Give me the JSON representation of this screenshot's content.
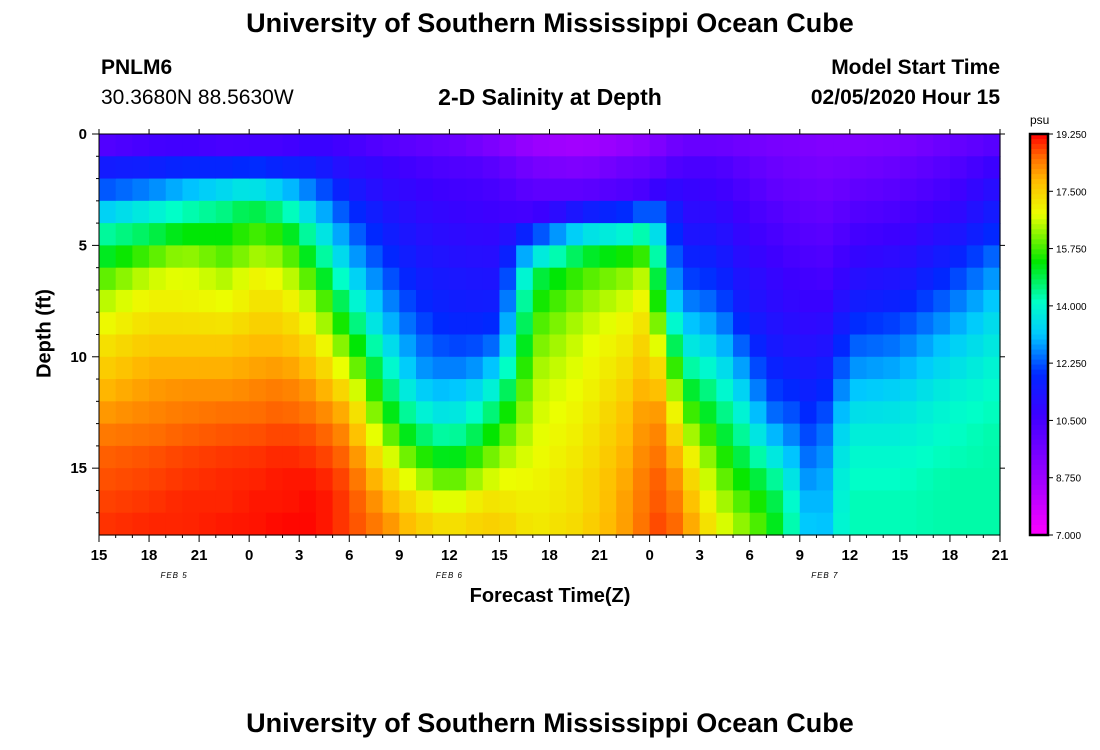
{
  "header": {
    "title_top": "University of Southern Mississippi Ocean Cube",
    "title_bottom": "University of Southern Mississippi Ocean Cube",
    "station_id": "PNLM6",
    "station_coords": "30.3680N 88.5630W",
    "plot_title": "2-D Salinity at Depth",
    "model_start_label": "Model Start Time",
    "model_start_value": "02/05/2020 Hour 15"
  },
  "chart_data": {
    "type": "heatmap",
    "title": "2-D Salinity at Depth",
    "xlabel": "Forecast Time(Z)",
    "ylabel": "Depth (ft)",
    "x_tick_labels": [
      "15",
      "18",
      "21",
      "0",
      "3",
      "6",
      "9",
      "12",
      "15",
      "18",
      "21",
      "0",
      "3",
      "6",
      "9",
      "12",
      "15",
      "18",
      "21"
    ],
    "x_hours_range": [
      0,
      54
    ],
    "x_step_hours": 1,
    "day_labels": [
      {
        "text": "FEB 5",
        "hour": 4.5
      },
      {
        "text": "FEB 6",
        "hour": 21
      },
      {
        "text": "FEB 7",
        "hour": 43.5
      }
    ],
    "y_ticks": [
      0,
      5,
      10,
      15
    ],
    "y_tick_labels": [
      "0",
      "5",
      "10",
      "15"
    ],
    "ylim": [
      0,
      18
    ],
    "depth_levels": [
      0.5,
      1.5,
      2.5,
      3.5,
      4.5,
      5.5,
      6.5,
      7.5,
      8.5,
      9.5,
      10.5,
      11.5,
      12.5,
      13.5,
      14.5,
      15.5,
      16.5,
      17.5
    ],
    "colorbar": {
      "unit": "psu",
      "min": 7.0,
      "max": 19.25,
      "tick_values": [
        7.0,
        8.75,
        10.5,
        12.25,
        14.0,
        15.75,
        17.5,
        19.25
      ],
      "tick_labels": [
        "7.000",
        "8.750",
        "10.500",
        "12.250",
        "14.000",
        "15.750",
        "17.500",
        "19.250"
      ]
    },
    "keyframes": [
      {
        "hour": 0,
        "profile": [
          10.2,
          11.5,
          12.2,
          13.2,
          14.3,
          15.0,
          15.8,
          16.4,
          16.8,
          17.2,
          17.5,
          17.8,
          18.1,
          18.4,
          18.6,
          18.7,
          18.8,
          18.9
        ]
      },
      {
        "hour": 3,
        "profile": [
          10.5,
          11.6,
          12.6,
          13.8,
          14.8,
          15.8,
          16.6,
          17.0,
          17.3,
          17.6,
          17.9,
          18.1,
          18.3,
          18.5,
          18.7,
          18.8,
          18.9,
          19.0
        ]
      },
      {
        "hour": 5,
        "profile": [
          10.6,
          11.8,
          13.0,
          14.2,
          15.3,
          16.3,
          16.8,
          17.0,
          17.3,
          17.6,
          17.9,
          18.2,
          18.4,
          18.6,
          18.8,
          18.9,
          19.0,
          19.0
        ]
      },
      {
        "hour": 8,
        "profile": [
          10.4,
          11.8,
          13.5,
          14.6,
          15.3,
          15.8,
          16.4,
          16.8,
          17.2,
          17.6,
          17.9,
          18.2,
          18.5,
          18.7,
          18.9,
          19.0,
          19.0,
          19.1
        ]
      },
      {
        "hour": 9,
        "profile": [
          10.5,
          12.0,
          13.7,
          15.0,
          15.8,
          16.4,
          17.0,
          17.2,
          17.5,
          17.8,
          18.0,
          18.3,
          18.5,
          18.7,
          18.9,
          19.0,
          19.1,
          19.1
        ]
      },
      {
        "hour": 11,
        "profile": [
          10.5,
          11.7,
          13.2,
          14.5,
          15.5,
          16.2,
          16.8,
          17.2,
          17.5,
          17.8,
          18.1,
          18.4,
          18.6,
          18.8,
          19.0,
          19.1,
          19.1,
          19.2
        ]
      },
      {
        "hour": 13,
        "profile": [
          10.8,
          11.6,
          12.4,
          13.2,
          14.0,
          14.8,
          15.6,
          16.3,
          16.8,
          17.3,
          17.7,
          18.1,
          18.4,
          18.7,
          18.9,
          19.1,
          19.2,
          19.2
        ]
      },
      {
        "hour": 15,
        "profile": [
          10.5,
          11.0,
          11.5,
          12.0,
          12.5,
          13.0,
          13.6,
          14.3,
          15.0,
          15.8,
          16.5,
          17.2,
          17.8,
          18.2,
          18.5,
          18.7,
          18.8,
          18.8
        ]
      },
      {
        "hour": 17,
        "profile": [
          10.2,
          10.8,
          11.0,
          11.4,
          11.7,
          12.0,
          12.4,
          12.8,
          13.2,
          13.8,
          14.4,
          15.0,
          15.6,
          16.3,
          17.0,
          17.6,
          18.0,
          18.3
        ]
      },
      {
        "hour": 19,
        "profile": [
          10.0,
          10.5,
          10.8,
          11.0,
          11.2,
          11.4,
          11.6,
          11.9,
          12.2,
          12.5,
          12.8,
          13.3,
          14.0,
          14.8,
          15.7,
          16.5,
          17.2,
          17.6
        ]
      },
      {
        "hour": 21,
        "profile": [
          9.8,
          10.3,
          10.6,
          10.8,
          11.0,
          11.2,
          11.4,
          11.6,
          11.8,
          12.1,
          12.5,
          13.0,
          13.5,
          14.2,
          15.0,
          15.8,
          16.6,
          17.2
        ]
      },
      {
        "hour": 23,
        "profile": [
          9.5,
          10.2,
          10.5,
          10.7,
          10.9,
          11.1,
          11.3,
          11.5,
          11.8,
          12.2,
          12.8,
          13.5,
          14.2,
          15.0,
          15.8,
          16.5,
          17.2,
          17.5
        ]
      },
      {
        "hour": 24,
        "profile": [
          9.3,
          10.0,
          10.4,
          10.6,
          10.9,
          11.1,
          11.3,
          11.6,
          12.0,
          12.6,
          13.4,
          14.2,
          15.0,
          15.7,
          16.3,
          16.8,
          17.2,
          17.5
        ]
      },
      {
        "hour": 26,
        "profile": [
          8.8,
          9.5,
          10.0,
          10.5,
          12.0,
          13.5,
          14.8,
          15.3,
          15.7,
          16.0,
          16.3,
          16.5,
          16.6,
          16.7,
          16.8,
          16.9,
          17.0,
          17.1
        ]
      },
      {
        "hour": 29,
        "profile": [
          8.6,
          9.3,
          10.0,
          11.5,
          13.5,
          15.0,
          15.8,
          16.2,
          16.5,
          16.7,
          16.8,
          16.9,
          17.0,
          17.1,
          17.2,
          17.3,
          17.3,
          17.4
        ]
      },
      {
        "hour": 32,
        "profile": [
          9.0,
          9.8,
          10.3,
          12.0,
          14.0,
          15.5,
          16.3,
          16.7,
          17.0,
          17.2,
          17.4,
          17.6,
          17.8,
          17.9,
          18.0,
          18.1,
          18.2,
          18.2
        ]
      },
      {
        "hour": 33,
        "profile": [
          9.2,
          9.8,
          10.5,
          12.5,
          14.5,
          15.8,
          16.7,
          17.1,
          17.4,
          17.7,
          17.9,
          18.1,
          18.3,
          18.4,
          18.5,
          18.6,
          18.6,
          18.7
        ]
      },
      {
        "hour": 34,
        "profile": [
          9.5,
          10.2,
          11.0,
          12.0,
          12.5,
          12.8,
          13.2,
          13.8,
          14.8,
          15.8,
          16.8,
          17.4,
          17.9,
          18.2,
          18.4,
          18.6,
          18.7,
          18.8
        ]
      },
      {
        "hour": 35,
        "profile": [
          9.8,
          10.4,
          10.8,
          11.0,
          11.3,
          11.7,
          12.1,
          12.6,
          13.2,
          13.8,
          14.5,
          15.3,
          16.0,
          16.7,
          17.4,
          17.8,
          18.1,
          18.3
        ]
      },
      {
        "hour": 37,
        "profile": [
          9.8,
          10.4,
          10.7,
          11.0,
          11.3,
          11.6,
          11.9,
          12.3,
          12.8,
          13.3,
          13.8,
          14.3,
          14.8,
          15.3,
          15.8,
          16.2,
          16.6,
          16.9
        ]
      },
      {
        "hour": 39,
        "profile": [
          9.6,
          10.0,
          10.3,
          10.5,
          10.7,
          10.9,
          11.1,
          11.3,
          11.6,
          12.0,
          12.5,
          13.0,
          13.6,
          14.1,
          14.6,
          15.1,
          15.6,
          16.0
        ]
      },
      {
        "hour": 40,
        "profile": [
          9.5,
          9.8,
          10.0,
          10.3,
          10.5,
          10.7,
          10.9,
          11.1,
          11.3,
          11.5,
          11.8,
          12.1,
          12.5,
          13.2,
          14.0,
          14.8,
          15.3,
          15.6
        ]
      },
      {
        "hour": 42,
        "profile": [
          9.4,
          9.6,
          9.8,
          10.0,
          10.2,
          10.4,
          10.6,
          10.8,
          11.0,
          11.2,
          11.5,
          11.8,
          12.1,
          12.4,
          12.8,
          13.2,
          13.6,
          13.8
        ]
      },
      {
        "hour": 43,
        "profile": [
          9.3,
          9.5,
          9.7,
          9.9,
          10.1,
          10.3,
          10.5,
          10.7,
          10.9,
          11.1,
          11.3,
          11.5,
          11.7,
          11.9,
          12.1,
          12.3,
          12.4,
          12.5
        ]
      },
      {
        "hour": 44,
        "profile": [
          9.3,
          9.5,
          9.7,
          9.9,
          10.1,
          10.3,
          10.5,
          10.8,
          11.1,
          11.4,
          11.8,
          12.2,
          12.6,
          13.0,
          13.3,
          13.5,
          13.6,
          13.7
        ]
      },
      {
        "hour": 45,
        "profile": [
          9.3,
          9.6,
          9.9,
          10.2,
          10.5,
          10.8,
          11.1,
          11.5,
          11.9,
          12.3,
          12.7,
          13.1,
          13.5,
          13.8,
          14.0,
          14.1,
          14.2,
          14.2
        ]
      },
      {
        "hour": 48,
        "profile": [
          9.4,
          9.8,
          10.1,
          10.4,
          10.7,
          11.0,
          11.3,
          11.7,
          12.1,
          12.5,
          12.9,
          13.3,
          13.6,
          13.8,
          14.0,
          14.1,
          14.2,
          14.2
        ]
      },
      {
        "hour": 51,
        "profile": [
          9.8,
          10.2,
          10.5,
          10.8,
          11.2,
          11.6,
          12.0,
          12.4,
          12.8,
          13.2,
          13.5,
          13.8,
          14.0,
          14.1,
          14.2,
          14.3,
          14.3,
          14.3
        ]
      },
      {
        "hour": 54,
        "profile": [
          10.2,
          10.8,
          11.2,
          11.6,
          12.0,
          12.5,
          12.9,
          13.3,
          13.6,
          13.8,
          14.0,
          14.1,
          14.2,
          14.3,
          14.3,
          14.3,
          14.3,
          14.3
        ]
      }
    ]
  }
}
